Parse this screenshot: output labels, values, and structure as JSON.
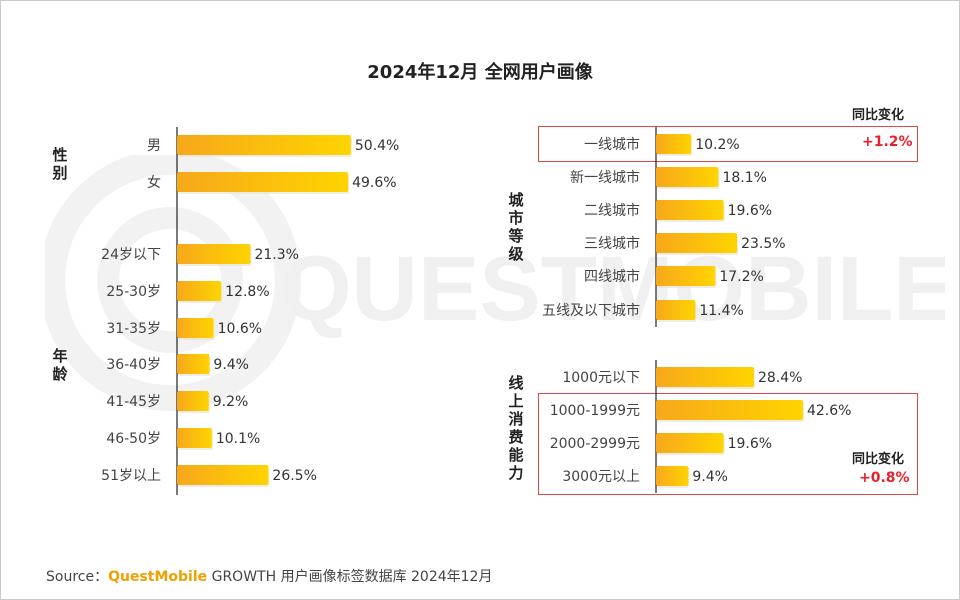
{
  "title": "2024年12月 全网用户画像",
  "groups": {
    "gender": "性别",
    "age": "年龄",
    "city": "城市等级",
    "consumption": "线上消费能力"
  },
  "yoy": {
    "label_city": "同比变化",
    "value_city": "+1.2%",
    "label_consumption": "同比变化",
    "value_consumption": "+0.8%"
  },
  "watermark": "QUESTMOBILE",
  "source": {
    "prefix": "Source：",
    "brand": "QuestMobile",
    "rest": " GROWTH 用户画像标签数据库 2024年12月"
  },
  "colors": {
    "bar_start": "#f7a81b",
    "bar_end": "#ffd400",
    "highlight": "#e04848"
  },
  "chart_data": [
    {
      "type": "bar",
      "orientation": "horizontal",
      "group": "性别",
      "categories": [
        "男",
        "女"
      ],
      "values": [
        50.4,
        49.6
      ],
      "value_labels": [
        "50.4%",
        "49.6%"
      ]
    },
    {
      "type": "bar",
      "orientation": "horizontal",
      "group": "年龄",
      "categories": [
        "24岁以下",
        "25-30岁",
        "31-35岁",
        "36-40岁",
        "41-45岁",
        "46-50岁",
        "51岁以上"
      ],
      "values": [
        21.3,
        12.8,
        10.6,
        9.4,
        9.2,
        10.1,
        26.5
      ],
      "value_labels": [
        "21.3%",
        "12.8%",
        "10.6%",
        "9.4%",
        "9.2%",
        "10.1%",
        "26.5%"
      ]
    },
    {
      "type": "bar",
      "orientation": "horizontal",
      "group": "城市等级",
      "categories": [
        "一线城市",
        "新一线城市",
        "二线城市",
        "三线城市",
        "四线城市",
        "五线及以下城市"
      ],
      "values": [
        10.2,
        18.1,
        19.6,
        23.5,
        17.2,
        11.4
      ],
      "value_labels": [
        "10.2%",
        "18.1%",
        "19.6%",
        "23.5%",
        "17.2%",
        "11.4%"
      ]
    },
    {
      "type": "bar",
      "orientation": "horizontal",
      "group": "线上消费能力",
      "categories": [
        "1000元以下",
        "1000-1999元",
        "2000-2999元",
        "3000元以上"
      ],
      "values": [
        28.4,
        42.6,
        19.6,
        9.4
      ],
      "value_labels": [
        "28.4%",
        "42.6%",
        "19.6%",
        "9.4%"
      ]
    }
  ]
}
